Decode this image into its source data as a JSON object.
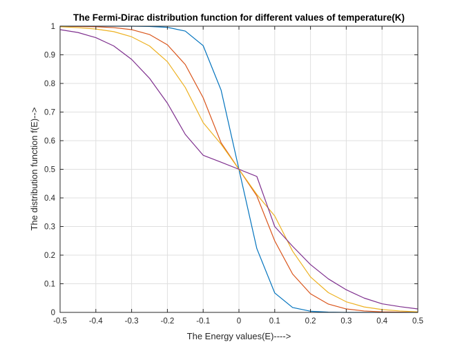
{
  "chart_data": {
    "type": "line",
    "title": "The Fermi-Dirac distribution function for different values of temperature(K)",
    "xlabel": "The Energy values(E)---->",
    "ylabel": "The distribution function f(E)-->",
    "xlim": [
      -0.5,
      0.5
    ],
    "ylim": [
      0,
      1
    ],
    "xticks": [
      "-0.5",
      "-0.4",
      "-0.3",
      "-0.2",
      "-0.1",
      "0",
      "0.1",
      "0.2",
      "0.3",
      "0.4",
      "0.5"
    ],
    "yticks": [
      "0",
      "0.1",
      "0.2",
      "0.3",
      "0.4",
      "0.5",
      "0.6",
      "0.7",
      "0.8",
      "0.9",
      "1"
    ],
    "grid": true,
    "legend": "none",
    "x": [
      -0.5,
      -0.45,
      -0.4,
      -0.35,
      -0.3,
      -0.25,
      -0.2,
      -0.15,
      -0.1,
      -0.05,
      0,
      0.05,
      0.1,
      0.15,
      0.2,
      0.25,
      0.3,
      0.35,
      0.4,
      0.45,
      0.5
    ],
    "series": [
      {
        "color": "#0072BD",
        "values": [
          1.0,
          1.0,
          1.0,
          1.0,
          1.0,
          0.999,
          0.996,
          0.983,
          0.932,
          0.777,
          0.5,
          0.223,
          0.068,
          0.017,
          0.004,
          0.001,
          0.0,
          0.0,
          0.0,
          0.0,
          0.0
        ]
      },
      {
        "color": "#D95319",
        "values": [
          1.0,
          0.999,
          0.998,
          0.995,
          0.988,
          0.971,
          0.935,
          0.866,
          0.75,
          0.593,
          0.5,
          0.407,
          0.25,
          0.134,
          0.065,
          0.029,
          0.012,
          0.005,
          0.002,
          0.001,
          0.0
        ]
      },
      {
        "color": "#EDB120",
        "values": [
          0.998,
          0.995,
          0.99,
          0.981,
          0.963,
          0.931,
          0.876,
          0.786,
          0.663,
          0.588,
          0.5,
          0.412,
          0.337,
          0.214,
          0.124,
          0.069,
          0.037,
          0.019,
          0.01,
          0.005,
          0.002
        ]
      },
      {
        "color": "#7E2F8E",
        "values": [
          0.988,
          0.978,
          0.96,
          0.931,
          0.884,
          0.818,
          0.731,
          0.622,
          0.549,
          0.525,
          0.5,
          0.475,
          0.3,
          0.231,
          0.167,
          0.117,
          0.079,
          0.05,
          0.03,
          0.02,
          0.012
        ]
      }
    ]
  }
}
